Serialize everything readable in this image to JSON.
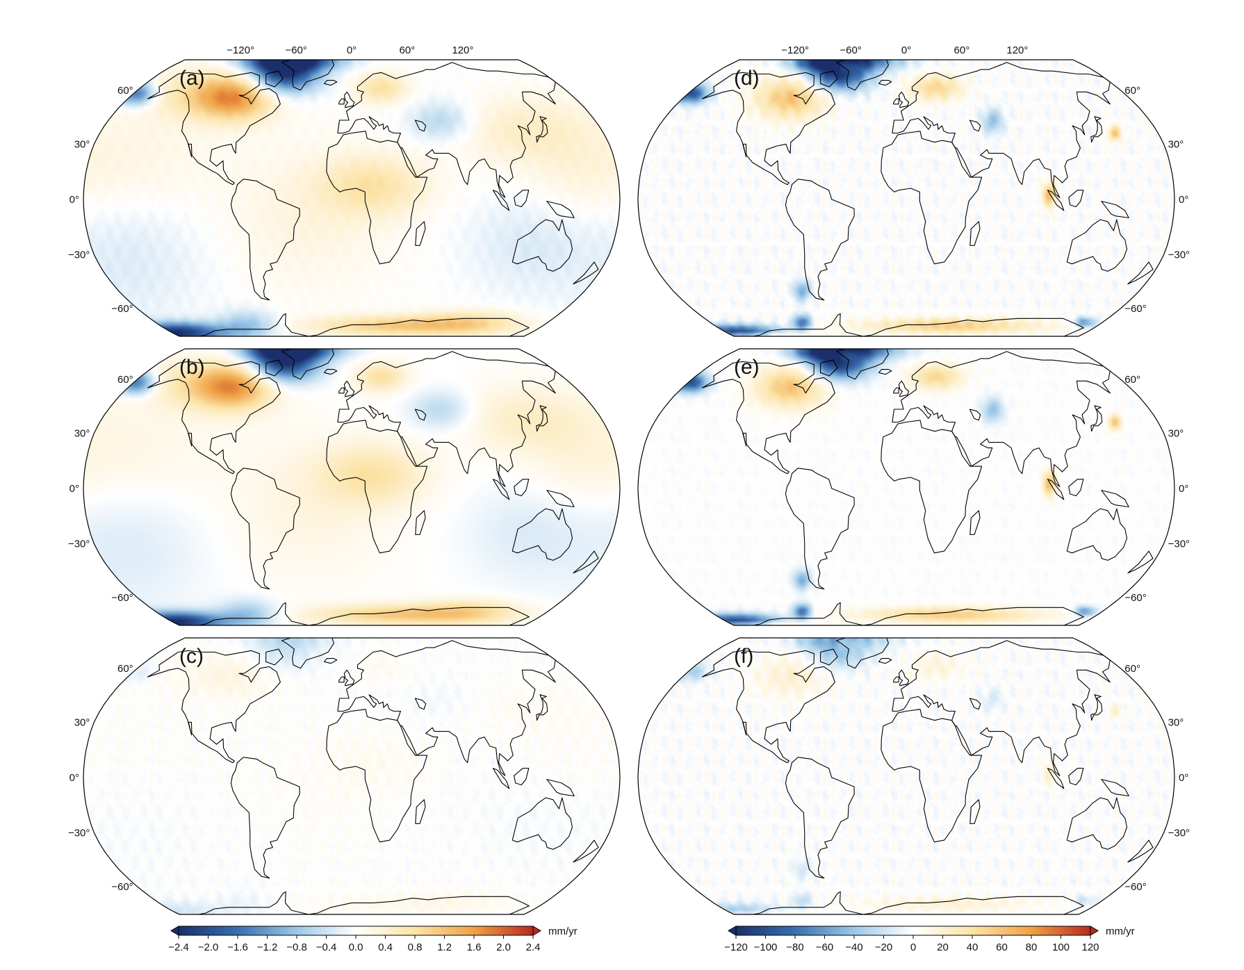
{
  "longitude_ticks": [
    "−120°",
    "−60°",
    "0°",
    "60°",
    "120°"
  ],
  "latitude_ticks": [
    "60°",
    "30°",
    "0°",
    "−30°",
    "−60°"
  ],
  "panels": [
    {
      "label": "(a)",
      "column": "left",
      "row": 1,
      "scale": "small",
      "intensity": 1.0,
      "noise": 0.25,
      "show_lon_ticks": true
    },
    {
      "label": "(b)",
      "column": "left",
      "row": 2,
      "scale": "small",
      "intensity": 1.0,
      "noise": 0.0,
      "show_lon_ticks": false
    },
    {
      "label": "(c)",
      "column": "left",
      "row": 3,
      "scale": "small",
      "intensity": 0.15,
      "noise": 0.35,
      "show_lon_ticks": false
    },
    {
      "label": "(d)",
      "column": "right",
      "row": 1,
      "scale": "large",
      "intensity": 1.0,
      "noise": 0.6,
      "show_lon_ticks": true
    },
    {
      "label": "(e)",
      "column": "right",
      "row": 2,
      "scale": "large",
      "intensity": 1.0,
      "noise": 0.3,
      "show_lon_ticks": false
    },
    {
      "label": "(f)",
      "column": "right",
      "row": 3,
      "scale": "large",
      "intensity": 0.35,
      "noise": 0.6,
      "show_lon_ticks": false
    }
  ],
  "colorbars": [
    {
      "id": "left",
      "unit": "mm/yr",
      "min": -2.4,
      "max": 2.4,
      "tick_labels": [
        "−2.4",
        "−2.0",
        "−1.6",
        "−1.2",
        "−0.8",
        "−0.4",
        "0.0",
        "0.4",
        "0.8",
        "1.2",
        "1.6",
        "2.0",
        "2.4"
      ]
    },
    {
      "id": "right",
      "unit": "mm/yr",
      "min": -120,
      "max": 120,
      "tick_labels": [
        "−120",
        "−100",
        "−80",
        "−60",
        "−40",
        "−20",
        "0",
        "20",
        "40",
        "60",
        "80",
        "100",
        "120"
      ]
    }
  ],
  "colormap": [
    "#1a2f6b",
    "#3a6fb0",
    "#9cc8e8",
    "#ffffff",
    "#fce4a8",
    "#f0a145",
    "#b82a20"
  ],
  "coastline_color": "#000000"
}
